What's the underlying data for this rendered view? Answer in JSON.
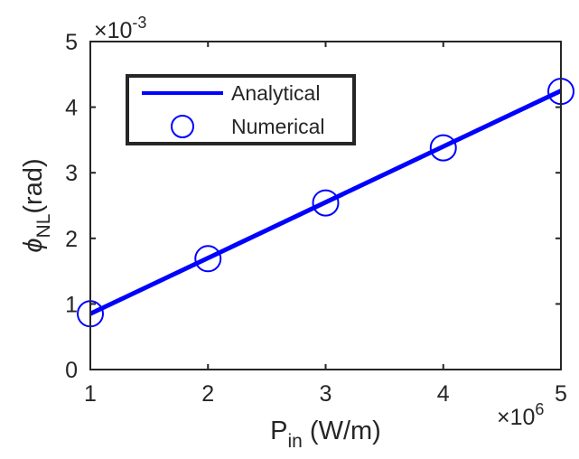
{
  "chart_data": {
    "type": "line",
    "xlabel": {
      "main": "P",
      "sub": "in",
      "rest": " (W/m)"
    },
    "ylabel": {
      "main": "ϕ",
      "sub": "NL",
      "rest": "(rad)"
    },
    "x_multiplier": {
      "base": "×10",
      "exp": "6"
    },
    "y_multiplier": {
      "base": "×10",
      "exp": "-3"
    },
    "xlim": [
      1,
      5
    ],
    "ylim": [
      0,
      5
    ],
    "x_ticks": [
      "1",
      "2",
      "3",
      "4",
      "5"
    ],
    "y_ticks": [
      "0",
      "1",
      "2",
      "3",
      "4",
      "5"
    ],
    "grid": false,
    "legend_position": "top-left",
    "series": [
      {
        "name": "Analytical",
        "style": "line",
        "color": "#0000ff",
        "x": [
          1,
          5
        ],
        "y": [
          0.85,
          4.25
        ]
      },
      {
        "name": "Numerical",
        "style": "markers",
        "marker": "circle",
        "color": "#0000ff",
        "x": [
          1,
          2,
          3,
          4,
          5
        ],
        "y": [
          0.85,
          1.69,
          2.54,
          3.38,
          4.24
        ]
      }
    ]
  }
}
